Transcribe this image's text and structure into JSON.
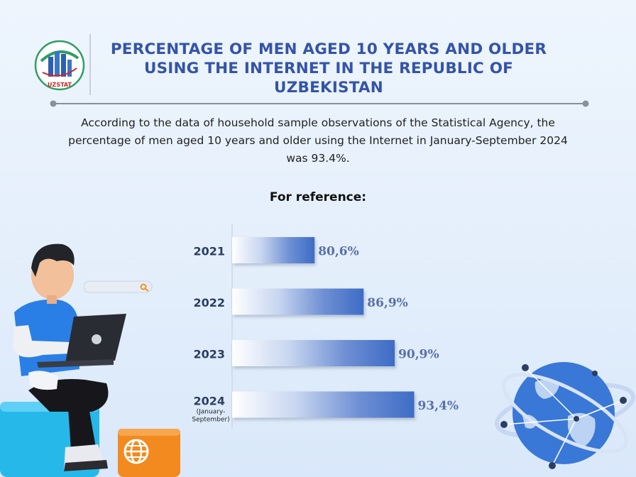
{
  "header": {
    "logo_text": "UZSTAT",
    "title": "PERCENTAGE OF MEN AGED 10 YEARS AND OLDER USING THE INTERNET IN THE REPUBLIC OF UZBEKISTAN"
  },
  "description": "According to the data of household sample observations of the Statistical Agency, the percentage of men aged 10 years and older using the Internet in January-September 2024 was 93.4%.",
  "reference_label": "For reference:",
  "colors": {
    "title": "#3454a7",
    "bar": "#3d6cc6",
    "value_label": "#5b6fa8"
  },
  "icons": [
    "person-with-laptop-icon",
    "search-bar-icon",
    "globe-network-icon",
    "web-globe-icon"
  ],
  "chart_data": {
    "type": "bar",
    "orientation": "horizontal",
    "categories": [
      "2021",
      "2022",
      "2023",
      "2024"
    ],
    "category_sublabels": [
      "",
      "",
      "",
      "(January-September)"
    ],
    "values": [
      80.6,
      86.9,
      90.9,
      93.4
    ],
    "value_labels": [
      "80,6%",
      "86,9%",
      "90,9%",
      "93,4%"
    ],
    "unit": "%",
    "xlim": [
      70,
      96
    ],
    "grid": false,
    "legend": "none"
  }
}
